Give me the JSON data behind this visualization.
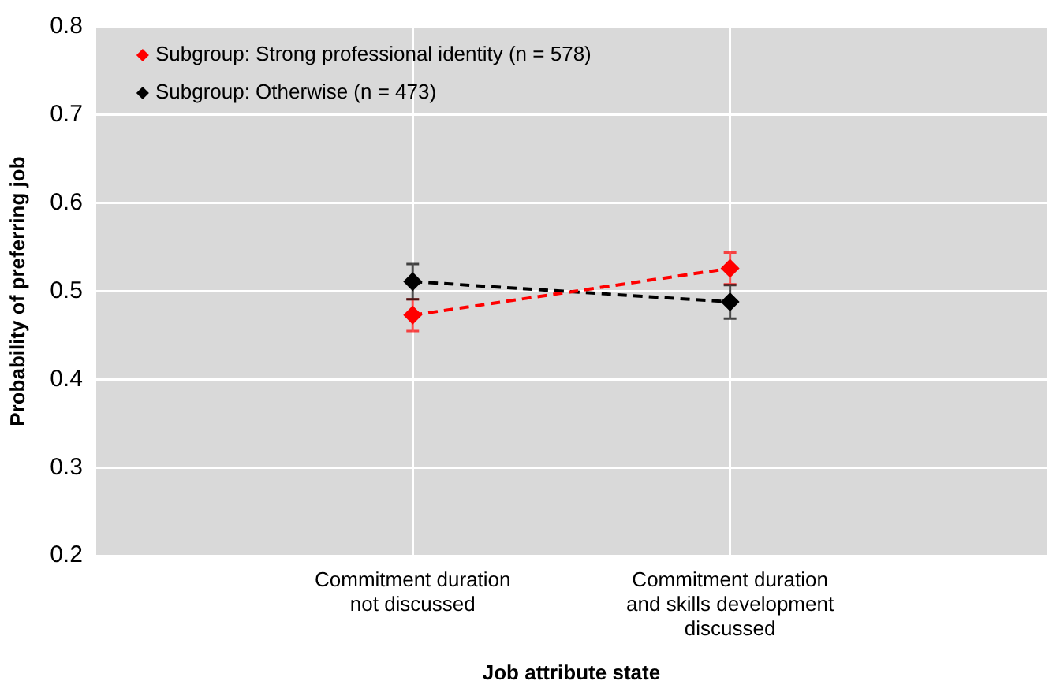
{
  "chart_data": {
    "type": "line",
    "xlabel": "Job attribute state",
    "ylabel": "Probability of preferring job",
    "categories": [
      null,
      "Commitment duration not discussed",
      "Commitment duration and skills development discussed",
      null
    ],
    "series": [
      {
        "name": "Subgroup: Strong professional identity (n = 578)",
        "color": "#ff0000",
        "values": [
          null,
          0.473,
          0.526,
          null
        ],
        "errors": [
          null,
          0.018,
          0.018,
          null
        ]
      },
      {
        "name": "Subgroup: Otherwise (n = 473)",
        "color": "#000000",
        "values": [
          null,
          0.511,
          0.488,
          null
        ],
        "errors": [
          null,
          0.02,
          0.019,
          null
        ]
      }
    ],
    "ylim": [
      0.2,
      0.8
    ],
    "yticks": [
      0.2,
      0.3,
      0.4,
      0.5,
      0.6,
      0.7,
      0.8
    ],
    "grid": true,
    "legend": "top left",
    "marker": "diamond",
    "line_style": "dashed"
  }
}
